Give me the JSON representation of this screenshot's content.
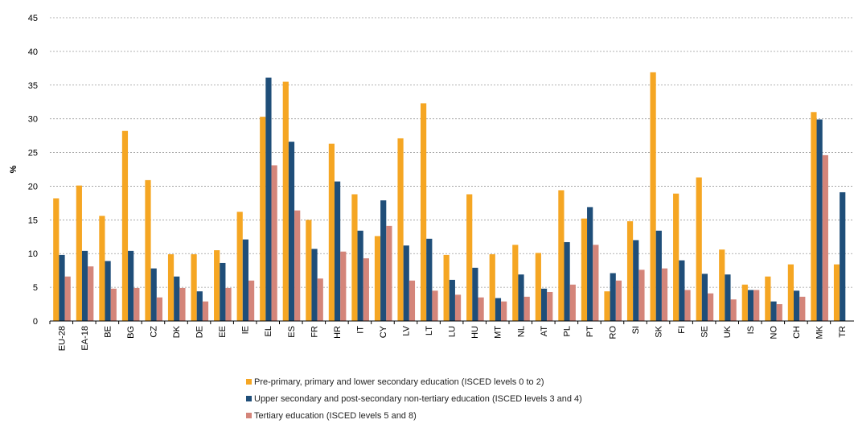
{
  "chart_data": {
    "type": "bar",
    "ylabel": "%",
    "ylim": [
      0,
      45
    ],
    "yticks": [
      0,
      5,
      10,
      15,
      20,
      25,
      30,
      35,
      40,
      45
    ],
    "grid": true,
    "legend_position": "bottom",
    "categories": [
      "EU-28",
      "EA-18",
      "BE",
      "BG",
      "CZ",
      "DK",
      "DE",
      "EE",
      "IE",
      "EL",
      "ES",
      "FR",
      "HR",
      "IT",
      "CY",
      "LV",
      "LT",
      "LU",
      "HU",
      "MT",
      "NL",
      "AT",
      "PL",
      "PT",
      "RO",
      "SI",
      "SK",
      "FI",
      "SE",
      "UK",
      "IS",
      "NO",
      "CH",
      "MK",
      "TR"
    ],
    "series": [
      {
        "name": "Pre-primary, primary and lower secondary education (ISCED levels 0 to 2)",
        "color": "#f5a623",
        "values": [
          18.2,
          20.1,
          15.6,
          28.2,
          20.9,
          9.9,
          9.9,
          10.5,
          16.2,
          30.3,
          35.5,
          15.0,
          26.3,
          18.8,
          12.6,
          27.1,
          32.3,
          9.8,
          18.8,
          9.9,
          11.3,
          10.1,
          19.4,
          15.2,
          4.4,
          14.8,
          36.9,
          18.9,
          21.3,
          10.6,
          5.4,
          6.6,
          8.4,
          31.0,
          8.4
        ]
      },
      {
        "name": "Upper secondary and post-secondary non-tertiary education (ISCED levels 3 and 4)",
        "color": "#1f4e79",
        "values": [
          9.8,
          10.4,
          8.9,
          10.4,
          7.8,
          6.6,
          4.4,
          8.6,
          12.1,
          36.1,
          26.6,
          10.7,
          20.7,
          13.4,
          17.9,
          11.2,
          12.2,
          6.1,
          7.9,
          3.4,
          6.9,
          4.8,
          11.7,
          16.9,
          7.1,
          12.0,
          13.4,
          9.0,
          7.0,
          6.9,
          4.6,
          2.9,
          4.5,
          29.9,
          19.1
        ]
      },
      {
        "name": "Tertiary education (ISCED levels 5 and 8)",
        "color": "#d4857a",
        "values": [
          6.6,
          8.1,
          4.8,
          4.9,
          3.5,
          4.9,
          2.9,
          4.9,
          6.0,
          23.1,
          16.4,
          6.3,
          10.3,
          9.3,
          14.1,
          6.0,
          4.5,
          3.9,
          3.5,
          2.9,
          3.6,
          4.3,
          5.4,
          11.3,
          6.0,
          7.6,
          7.8,
          4.6,
          4.1,
          3.2,
          4.6,
          2.5,
          3.6,
          24.6,
          null
        ]
      }
    ]
  }
}
